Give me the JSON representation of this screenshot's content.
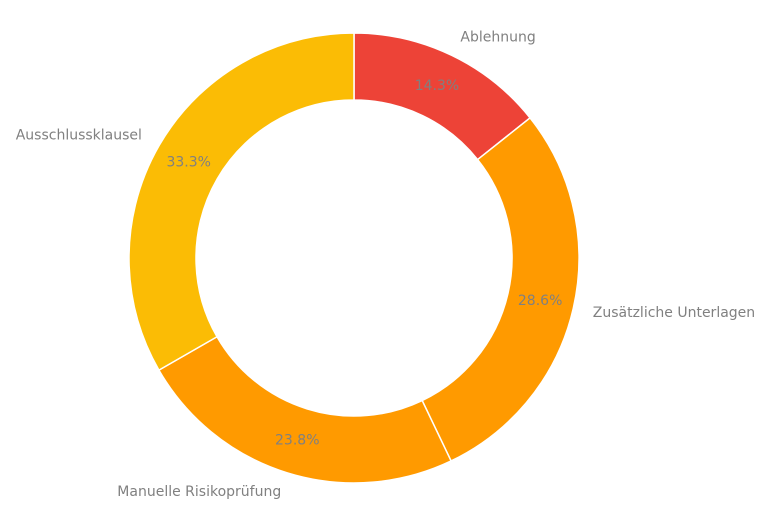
{
  "chart_data": {
    "type": "pie",
    "style": "donut",
    "categories": [
      "Ablehnung",
      "Zusätzliche Unterlagen",
      "Manuelle Risikoprüfung",
      "Ausschlussklausel"
    ],
    "values": [
      14.3,
      28.6,
      23.8,
      33.3
    ],
    "value_labels": [
      "14.3%",
      "28.6%",
      "23.8%",
      "33.3%"
    ],
    "colors": [
      "#ED4337",
      "#FF9A00",
      "#FF9A00",
      "#FBBC05"
    ],
    "start": "top",
    "direction": "clockwise",
    "legend": "none"
  }
}
